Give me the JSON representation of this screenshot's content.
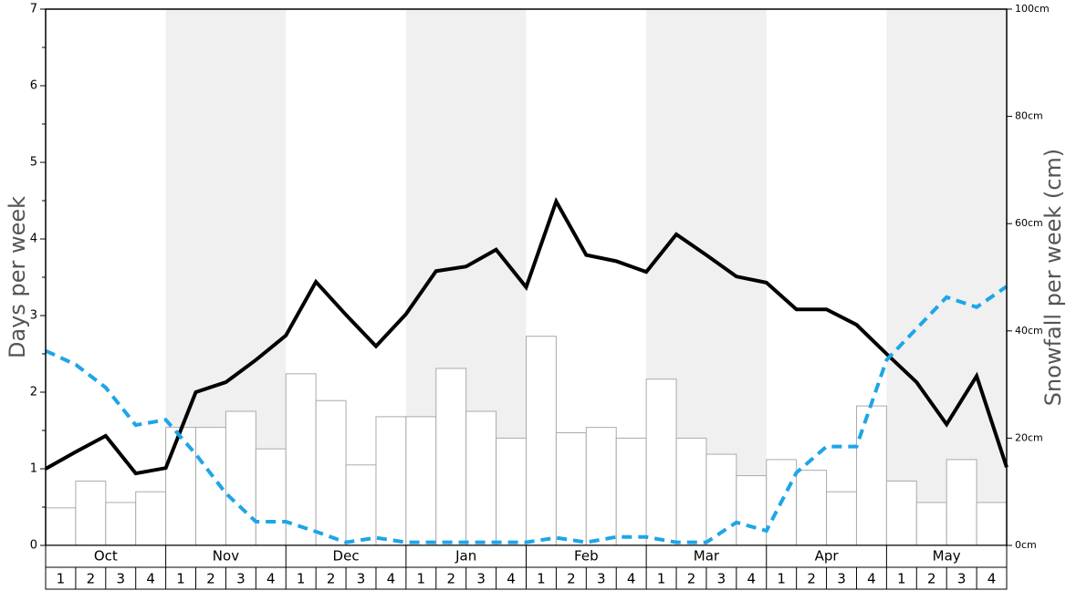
{
  "chart_data": {
    "type": "bar-line",
    "ylabel": "Days per week",
    "y2label": "Snowfall per week (cm)",
    "months": [
      "Oct",
      "Nov",
      "Dec",
      "Jan",
      "Feb",
      "Mar",
      "Apr",
      "May"
    ],
    "weeks": [
      "1",
      "2",
      "3",
      "4"
    ],
    "ylim": [
      0,
      7
    ],
    "yticks": [
      0,
      1,
      2,
      3,
      4,
      5,
      6,
      7
    ],
    "y2lim": [
      0,
      100
    ],
    "y2ticks": [
      {
        "value": 0,
        "label": "0cm"
      },
      {
        "value": 20,
        "label": "20cm"
      },
      {
        "value": 40,
        "label": "40cm"
      },
      {
        "value": 60,
        "label": "60cm"
      },
      {
        "value": 80,
        "label": "80cm"
      },
      {
        "value": 100,
        "label": "100cm"
      }
    ],
    "series": [
      {
        "axis": "y2",
        "color": "#ffffff",
        "values": [
          7,
          12,
          8,
          10,
          22,
          22,
          25,
          18,
          32,
          27,
          15,
          24,
          24,
          33,
          25,
          20,
          39,
          21,
          22,
          20,
          31,
          20,
          17,
          13,
          16,
          14,
          10,
          26,
          12,
          8,
          16,
          8
        ]
      }
    ],
    "lines": [
      {
        "color": "#000000",
        "dashed": false,
        "values": [
          1.0,
          1.22,
          1.43,
          0.94,
          1.01,
          2.0,
          2.13,
          2.42,
          2.74,
          3.44,
          3.01,
          2.6,
          3.02,
          3.58,
          3.64,
          3.86,
          3.37,
          4.49,
          3.79,
          3.71,
          3.57,
          4.06,
          3.79,
          3.51,
          3.43,
          3.08,
          3.08,
          2.88,
          2.5,
          2.13,
          1.58,
          2.21,
          1.02
        ]
      },
      {
        "color": "#1ea5e8",
        "dashed": true,
        "values": [
          2.54,
          2.36,
          2.06,
          1.57,
          1.64,
          1.19,
          0.68,
          0.31,
          0.31,
          0.18,
          0.04,
          0.1,
          0.04,
          0.04,
          0.04,
          0.04,
          0.04,
          0.1,
          0.04,
          0.11,
          0.11,
          0.04,
          0.04,
          0.3,
          0.19,
          0.95,
          1.29,
          1.29,
          2.42,
          2.83,
          3.24,
          3.11,
          3.38
        ]
      }
    ]
  }
}
